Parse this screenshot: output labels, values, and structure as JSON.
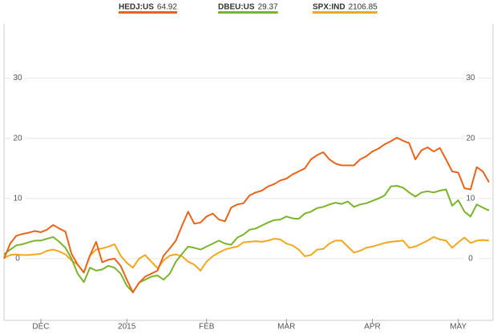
{
  "chart_data": {
    "type": "line",
    "categories": [
      null,
      null,
      null,
      null,
      null,
      null,
      "DEC",
      null,
      null,
      null,
      null,
      null,
      null,
      null,
      null,
      null,
      null,
      null,
      null,
      null,
      "2015",
      null,
      null,
      null,
      null,
      null,
      null,
      null,
      null,
      null,
      null,
      null,
      null,
      "FEB",
      null,
      null,
      null,
      null,
      null,
      null,
      null,
      null,
      null,
      null,
      null,
      null,
      "MAR",
      null,
      null,
      null,
      null,
      null,
      null,
      null,
      null,
      null,
      null,
      null,
      null,
      null,
      "APR",
      null,
      null,
      null,
      null,
      null,
      null,
      null,
      null,
      null,
      null,
      null,
      null,
      null,
      "MAY",
      null,
      null,
      null,
      null,
      null
    ],
    "series": [
      {
        "name": "HEDJ:US",
        "price": 64.92,
        "color": "#e8641b",
        "values": [
          0,
          2.5,
          3.8,
          4.1,
          4.3,
          4.6,
          4.4,
          4.8,
          5.6,
          5.0,
          4.5,
          0.8,
          -1.0,
          -2.3,
          0.5,
          2.8,
          -0.6,
          -0.2,
          0.0,
          -1.2,
          -3.5,
          -5.6,
          -4.0,
          -3.0,
          -2.5,
          -2.0,
          0.5,
          1.7,
          3.0,
          5.5,
          7.8,
          5.8,
          6.0,
          7.0,
          7.5,
          6.5,
          6.2,
          8.5,
          9.0,
          9.2,
          10.5,
          11.0,
          11.3,
          12.0,
          12.4,
          13.0,
          13.3,
          14.0,
          14.5,
          15.0,
          16.5,
          17.2,
          17.7,
          16.5,
          15.8,
          15.5,
          15.5,
          15.5,
          16.5,
          17.0,
          17.8,
          18.3,
          19.0,
          19.5,
          20.1,
          19.6,
          19.2,
          16.5,
          18.0,
          18.5,
          17.8,
          18.4,
          16.5,
          14.5,
          14.3,
          11.7,
          11.5,
          15.2,
          14.5,
          12.7
        ]
      },
      {
        "name": "DBEU:US",
        "price": 29.37,
        "color": "#79b42a",
        "values": [
          0.7,
          1.5,
          2.2,
          2.4,
          2.7,
          3.0,
          3.0,
          3.3,
          3.6,
          2.8,
          1.8,
          0.0,
          -2.5,
          -3.9,
          -1.5,
          -2.0,
          -1.8,
          -1.2,
          -1.5,
          -2.5,
          -4.5,
          -5.6,
          -4.0,
          -3.5,
          -3.0,
          -2.8,
          -3.5,
          -2.5,
          -0.5,
          0.8,
          2.0,
          1.8,
          1.5,
          2.0,
          2.5,
          3.0,
          2.5,
          2.3,
          3.5,
          4.0,
          4.8,
          5.0,
          5.5,
          6.0,
          6.4,
          6.5,
          7.0,
          6.7,
          6.6,
          7.5,
          7.8,
          8.4,
          8.6,
          9.0,
          9.3,
          9.1,
          9.5,
          8.6,
          9.0,
          9.2,
          9.6,
          10.0,
          10.5,
          12.0,
          12.1,
          11.8,
          11.0,
          10.3,
          11.0,
          11.2,
          11.0,
          11.3,
          11.5,
          8.8,
          9.7,
          7.8,
          7.0,
          9.0,
          8.5,
          8.0
        ]
      },
      {
        "name": "SPX:IND",
        "price": 2106.85,
        "color": "#f0a81e",
        "values": [
          0.1,
          0.6,
          0.7,
          0.6,
          0.6,
          0.7,
          0.8,
          1.3,
          1.5,
          1.2,
          0.7,
          -0.3,
          -1.0,
          -2.3,
          0.5,
          1.5,
          1.7,
          2.0,
          2.4,
          0.5,
          -0.7,
          -1.5,
          0.0,
          0.6,
          -0.5,
          -1.6,
          -0.3,
          0.5,
          0.7,
          0.4,
          -0.5,
          -1.0,
          -2.0,
          -0.5,
          0.4,
          1.0,
          1.5,
          1.8,
          2.0,
          2.7,
          2.8,
          2.9,
          2.8,
          3.0,
          3.3,
          3.2,
          2.5,
          2.2,
          1.5,
          0.4,
          0.6,
          1.5,
          1.6,
          2.5,
          3.0,
          3.0,
          2.0,
          1.0,
          1.3,
          1.8,
          2.0,
          2.3,
          2.6,
          2.8,
          2.9,
          3.0,
          1.8,
          2.0,
          2.5,
          3.0,
          3.6,
          3.2,
          3.0,
          1.8,
          2.7,
          3.5,
          2.6,
          3.0,
          3.1,
          3.0
        ]
      }
    ],
    "ylim": [
      -10,
      39
    ],
    "yticks": [
      0,
      10,
      20,
      30
    ],
    "grid": true
  }
}
